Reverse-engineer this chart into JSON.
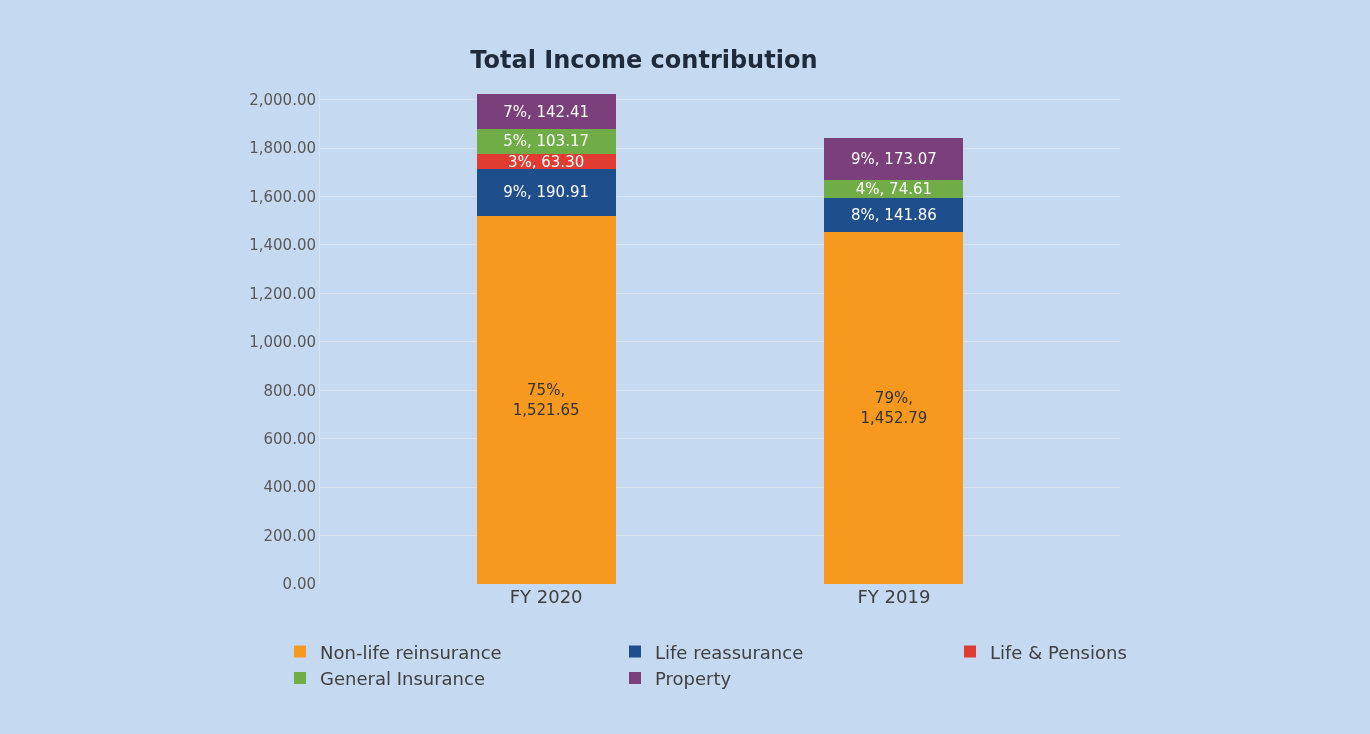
{
  "chart_data": {
    "type": "bar",
    "title": "Total Income contribution",
    "stacked": true,
    "categories": [
      "FY 2020",
      "FY 2019"
    ],
    "series": [
      {
        "name": "Non-life reinsurance",
        "color": "#f7991f",
        "values": [
          1521.65,
          1452.79
        ],
        "value_labels": [
          "75%,\n1,521.65",
          "79%,\n1,452.79"
        ]
      },
      {
        "name": "Life reassurance",
        "color": "#1f4e8c",
        "values": [
          190.91,
          141.86
        ],
        "value_labels": [
          "9%, 190.91",
          "8%, 141.86"
        ]
      },
      {
        "name": "Life & Pensions",
        "color": "#e03c31",
        "values": [
          63.3,
          null
        ],
        "value_labels": [
          "3%, 63.30",
          null
        ]
      },
      {
        "name": "General Insurance",
        "color": "#70ad47",
        "values": [
          103.17,
          74.61
        ],
        "value_labels": [
          "5%, 103.17",
          "4%, 74.61"
        ]
      },
      {
        "name": "Property",
        "color": "#7b3f7b",
        "values": [
          142.41,
          173.07
        ],
        "value_labels": [
          "7%, 142.41",
          "9%, 173.07"
        ]
      }
    ],
    "ylim": [
      0,
      2040
    ],
    "yticks": [
      {
        "value": 0,
        "label": "0.00"
      },
      {
        "value": 200,
        "label": "200.00"
      },
      {
        "value": 400,
        "label": "400.00"
      },
      {
        "value": 600,
        "label": "600.00"
      },
      {
        "value": 800,
        "label": "800.00"
      },
      {
        "value": 1000,
        "label": "1,000.00"
      },
      {
        "value": 1200,
        "label": "1,200.00"
      },
      {
        "value": 1400,
        "label": "1,400.00"
      },
      {
        "value": 1600,
        "label": "1,600.00"
      },
      {
        "value": 1800,
        "label": "1,800.00"
      },
      {
        "value": 2000,
        "label": "2,000.00"
      }
    ],
    "grid": "y",
    "legend": "bottom"
  }
}
